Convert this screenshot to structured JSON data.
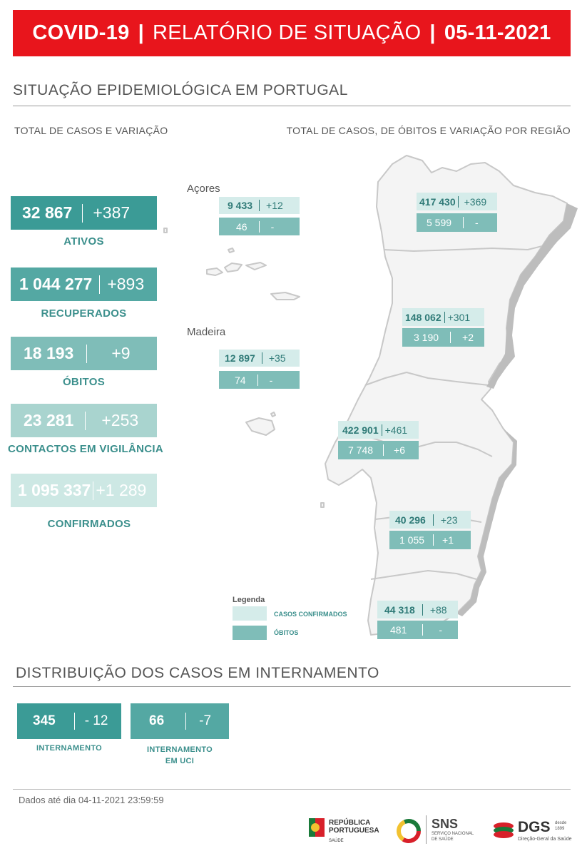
{
  "header": {
    "title_left": "COVID-19",
    "title_mid": "RELATÓRIO DE SITUAÇÃO",
    "date": "05-11-2021"
  },
  "section1": {
    "title": "SITUAÇÃO EPIDEMIOLÓGICA EM PORTUGAL",
    "left_sub": "TOTAL DE CASOS E VARIAÇÃO",
    "right_sub": "TOTAL DE CASOS, DE ÓBITOS E VARIAÇÃO POR REGIÃO"
  },
  "kpis": [
    {
      "value": "32 867",
      "delta": "+387",
      "label": "ATIVOS"
    },
    {
      "value": "1 044 277",
      "delta": "+893",
      "label": "RECUPERADOS"
    },
    {
      "value": "18 193",
      "delta": "+9",
      "label": "ÓBITOS"
    },
    {
      "value": "23 281",
      "delta": "+253",
      "label": "CONTACTOS EM VIGILÂNCIA"
    },
    {
      "value": "1 095 337",
      "delta": "+1 289",
      "label": "CONFIRMADOS"
    }
  ],
  "islands": {
    "acores": "Açores",
    "madeira": "Madeira"
  },
  "regions": [
    {
      "cases": "9 433",
      "cases_delta": "+12",
      "deaths": "46",
      "deaths_delta": "-"
    },
    {
      "cases": "12 897",
      "cases_delta": "+35",
      "deaths": "74",
      "deaths_delta": "-"
    },
    {
      "cases": "417 430",
      "cases_delta": "+369",
      "deaths": "5 599",
      "deaths_delta": "-"
    },
    {
      "cases": "148 062",
      "cases_delta": "+301",
      "deaths": "3 190",
      "deaths_delta": "+2"
    },
    {
      "cases": "422 901",
      "cases_delta": "+461",
      "deaths": "7 748",
      "deaths_delta": "+6"
    },
    {
      "cases": "40 296",
      "cases_delta": "+23",
      "deaths": "1 055",
      "deaths_delta": "+1"
    },
    {
      "cases": "44 318",
      "cases_delta": "+88",
      "deaths": "481",
      "deaths_delta": "-"
    }
  ],
  "legend": {
    "title": "Legenda",
    "confirmed": "CASOS CONFIRMADOS",
    "deaths": "ÓBITOS"
  },
  "section2": {
    "title": "DISTRIBUIÇÃO DOS CASOS EM INTERNAMENTO"
  },
  "hospital": [
    {
      "value": "345",
      "delta": "- 12",
      "label_l1": "INTERNAMENTO",
      "label_l2": ""
    },
    {
      "value": "66",
      "delta": "-7",
      "label_l1": "INTERNAMENTO",
      "label_l2": "EM UCI"
    }
  ],
  "footnote": "Dados até dia 04-11-2021 23:59:59",
  "logos": {
    "rp_l1": "REPÚBLICA",
    "rp_l2": "PORTUGUESA",
    "rp_l3": "SAÚDE",
    "sns": "SNS",
    "sns_l1": "SERVIÇO NACIONAL",
    "sns_l2": "DE SAÚDE",
    "dgs": "DGS",
    "dgs_sub": "Direção-Geral da Saúde",
    "dgs_desde": "desde",
    "dgs_year": "1899"
  },
  "colors": {
    "header_red": "#e8151c",
    "teal_dark": "#3b9b96",
    "teal_light": "#d5ecea"
  }
}
